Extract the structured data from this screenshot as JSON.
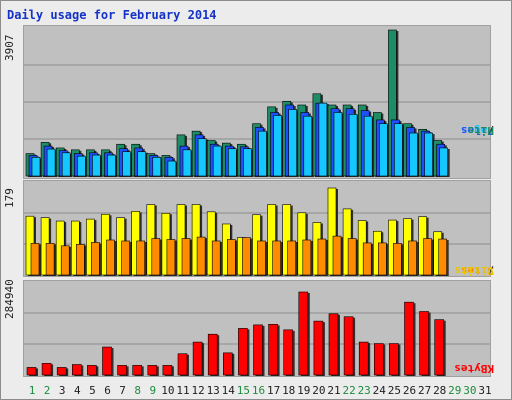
{
  "title": "Daily usage for February 2014",
  "colors": {
    "title": "#1432c8",
    "hits": "#1e8c64",
    "files": "#1e50ff",
    "pages": "#14c8ff",
    "visits": "#ffff00",
    "sites": "#ff8c00",
    "kbytes": "#ff0000",
    "weekend": "#1e8c3c",
    "weekday": "#202020",
    "panel": "#c0c0c0",
    "grid": "#8c8c8c"
  },
  "legend": {
    "pages": "Pages",
    "files": "Files",
    "hits": "Hits",
    "sites": "Sites",
    "visits": "Visits",
    "kbytes": "KBytes",
    "sep": "/"
  },
  "chart_data": [
    {
      "type": "bar",
      "title": "Daily usage for February 2014",
      "ymax_label": "3907",
      "ylim": [
        0,
        3907
      ],
      "categories": [
        "1",
        "2",
        "3",
        "4",
        "5",
        "6",
        "7",
        "8",
        "9",
        "10",
        "11",
        "12",
        "13",
        "14",
        "15",
        "16",
        "17",
        "18",
        "19",
        "20",
        "21",
        "22",
        "23",
        "24",
        "25",
        "26",
        "27",
        "28",
        "29",
        "30",
        "31"
      ],
      "series": [
        {
          "name": "Hits",
          "values": [
            600,
            900,
            750,
            700,
            700,
            700,
            850,
            850,
            600,
            550,
            1100,
            1200,
            950,
            880,
            850,
            1400,
            1850,
            2000,
            1900,
            2200,
            1900,
            1900,
            1900,
            1700,
            3907,
            1400,
            1250,
            950,
            0,
            0,
            0
          ]
        },
        {
          "name": "Files",
          "values": [
            550,
            800,
            680,
            600,
            620,
            620,
            730,
            750,
            550,
            500,
            800,
            1100,
            850,
            800,
            780,
            1300,
            1700,
            1900,
            1700,
            1950,
            1800,
            1800,
            1750,
            1500,
            1500,
            1300,
            1200,
            850,
            0,
            0,
            0
          ]
        },
        {
          "name": "Pages",
          "values": [
            500,
            720,
            620,
            530,
            560,
            560,
            650,
            650,
            500,
            400,
            700,
            1000,
            800,
            730,
            730,
            1200,
            1620,
            1780,
            1600,
            1950,
            1700,
            1650,
            1600,
            1400,
            1400,
            1150,
            1150,
            750,
            0,
            0,
            0
          ]
        }
      ]
    },
    {
      "type": "bar",
      "ymax_label": "179",
      "ylim": [
        0,
        179
      ],
      "categories": [
        "1",
        "2",
        "3",
        "4",
        "5",
        "6",
        "7",
        "8",
        "9",
        "10",
        "11",
        "12",
        "13",
        "14",
        "15",
        "16",
        "17",
        "18",
        "19",
        "20",
        "21",
        "22",
        "23",
        "24",
        "25",
        "26",
        "27",
        "28",
        "29",
        "30",
        "31"
      ],
      "series": [
        {
          "name": "Visits",
          "values": [
            121,
            118,
            111,
            111,
            115,
            125,
            118,
            131,
            145,
            127,
            145,
            145,
            130,
            105,
            77,
            124,
            145,
            145,
            128,
            108,
            179,
            136,
            112,
            90,
            113,
            116,
            120,
            89,
            0,
            0,
            0
          ]
        },
        {
          "name": "Sites",
          "values": [
            65,
            65,
            60,
            63,
            67,
            72,
            70,
            70,
            75,
            73,
            75,
            78,
            70,
            73,
            77,
            70,
            70,
            70,
            72,
            74,
            80,
            75,
            66,
            66,
            65,
            70,
            75,
            74,
            0,
            0,
            0
          ]
        }
      ]
    },
    {
      "type": "bar",
      "ymax_label": "284940",
      "ylim": [
        0,
        284940
      ],
      "categories": [
        "1",
        "2",
        "3",
        "4",
        "5",
        "6",
        "7",
        "8",
        "9",
        "10",
        "11",
        "12",
        "13",
        "14",
        "15",
        "16",
        "17",
        "18",
        "19",
        "20",
        "21",
        "22",
        "23",
        "24",
        "25",
        "26",
        "27",
        "28",
        "29",
        "30",
        "31"
      ],
      "series": [
        {
          "name": "KBytes",
          "values": [
            26000,
            40000,
            26000,
            36000,
            33000,
            96000,
            33000,
            33000,
            33000,
            33000,
            73000,
            113000,
            140000,
            76000,
            160000,
            172000,
            174000,
            155000,
            284940,
            185000,
            210000,
            200000,
            113000,
            108000,
            108000,
            250000,
            218000,
            190000,
            0,
            0,
            0
          ]
        }
      ]
    }
  ],
  "weekend_days": [
    "1",
    "2",
    "8",
    "9",
    "15",
    "16",
    "22",
    "23",
    "29",
    "30"
  ]
}
